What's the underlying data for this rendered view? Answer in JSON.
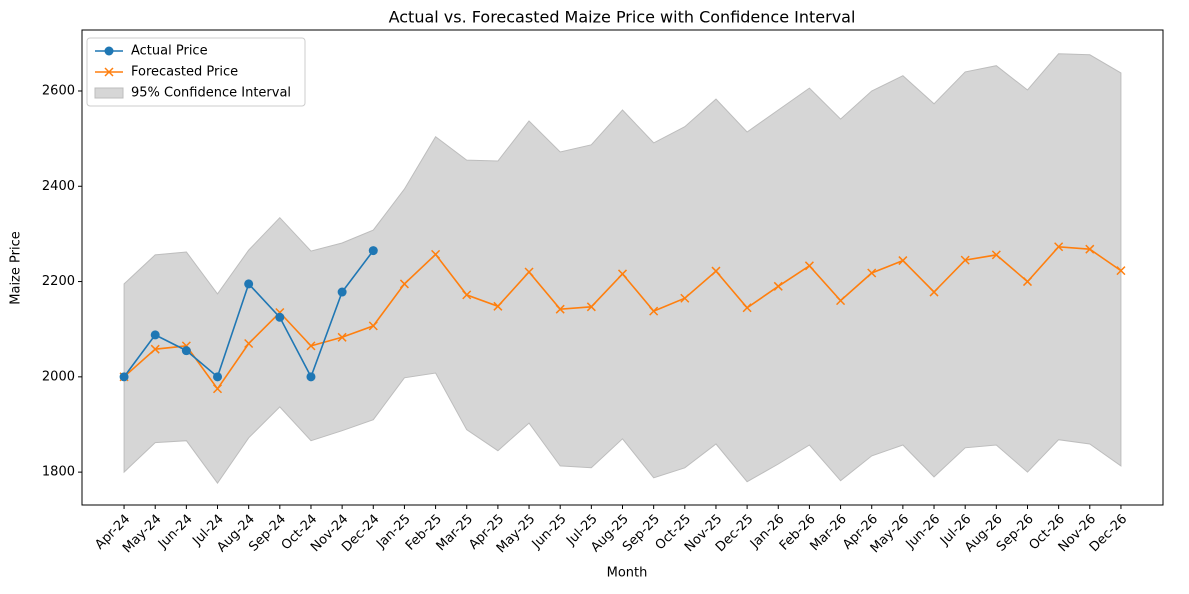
{
  "chart_data": {
    "type": "line",
    "title": "Actual vs. Forecasted Maize Price with Confidence Interval",
    "xlabel": "Month",
    "ylabel": "Maize Price",
    "categories": [
      "Apr-24",
      "May-24",
      "Jun-24",
      "Jul-24",
      "Aug-24",
      "Sep-24",
      "Oct-24",
      "Nov-24",
      "Dec-24",
      "Jan-25",
      "Feb-25",
      "Mar-25",
      "Apr-25",
      "May-25",
      "Jun-25",
      "Jul-25",
      "Aug-25",
      "Sep-25",
      "Oct-25",
      "Nov-25",
      "Dec-25",
      "Jan-26",
      "Feb-26",
      "Mar-26",
      "Apr-26",
      "May-26",
      "Jun-26",
      "Jul-26",
      "Aug-26",
      "Sep-26",
      "Oct-26",
      "Nov-26",
      "Dec-26"
    ],
    "series": [
      {
        "name": "Actual Price",
        "color": "#1f77b4",
        "marker": "circle",
        "values": [
          2000,
          2088,
          2055,
          2000,
          2195,
          2125,
          2000,
          2178,
          2265,
          null,
          null,
          null,
          null,
          null,
          null,
          null,
          null,
          null,
          null,
          null,
          null,
          null,
          null,
          null,
          null,
          null,
          null,
          null,
          null,
          null,
          null,
          null,
          null
        ]
      },
      {
        "name": "Forecasted Price",
        "color": "#ff7f0e",
        "marker": "x",
        "values": [
          2000,
          2058,
          2065,
          1975,
          2070,
          2135,
          2065,
          2083,
          2107,
          2195,
          2257,
          2172,
          2148,
          2220,
          2142,
          2147,
          2216,
          2138,
          2165,
          2222,
          2145,
          2190,
          2233,
          2160,
          2218,
          2244,
          2178,
          2245,
          2256,
          2200,
          2273,
          2268,
          2223
        ]
      },
      {
        "name": "95% Confidence Interval",
        "color": "#d6d6d6",
        "band": true,
        "upper": [
          2195,
          2256,
          2262,
          2174,
          2266,
          2334,
          2264,
          2281,
          2308,
          2394,
          2504,
          2455,
          2453,
          2537,
          2472,
          2487,
          2560,
          2491,
          2525,
          2583,
          2514,
          2560,
          2606,
          2541,
          2600,
          2632,
          2573,
          2640,
          2653,
          2602,
          2678,
          2676,
          2638
        ],
        "lower": [
          1800,
          1862,
          1866,
          1777,
          1872,
          1937,
          1866,
          1887,
          1910,
          1998,
          2008,
          1889,
          1845,
          1903,
          1813,
          1809,
          1870,
          1788,
          1809,
          1859,
          1780,
          1817,
          1857,
          1782,
          1834,
          1857,
          1790,
          1851,
          1857,
          1800,
          1868,
          1859,
          1813
        ]
      }
    ],
    "ylim": [
      1731,
      2728
    ],
    "yticks": [
      1800,
      2000,
      2200,
      2400,
      2600
    ],
    "grid": false,
    "legend": "upper left"
  }
}
